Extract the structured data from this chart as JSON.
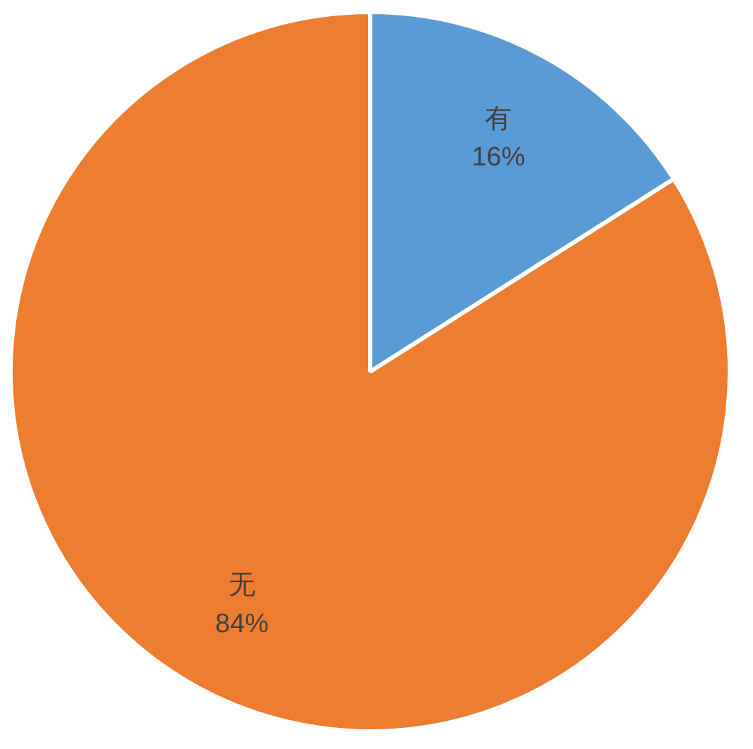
{
  "chart_data": {
    "type": "pie",
    "categories": [
      "有",
      "无"
    ],
    "values": [
      16,
      84
    ],
    "colors": [
      "#5b9bd5",
      "#ed7d31"
    ],
    "value_labels": [
      "16%",
      "84%"
    ],
    "legend": false
  }
}
